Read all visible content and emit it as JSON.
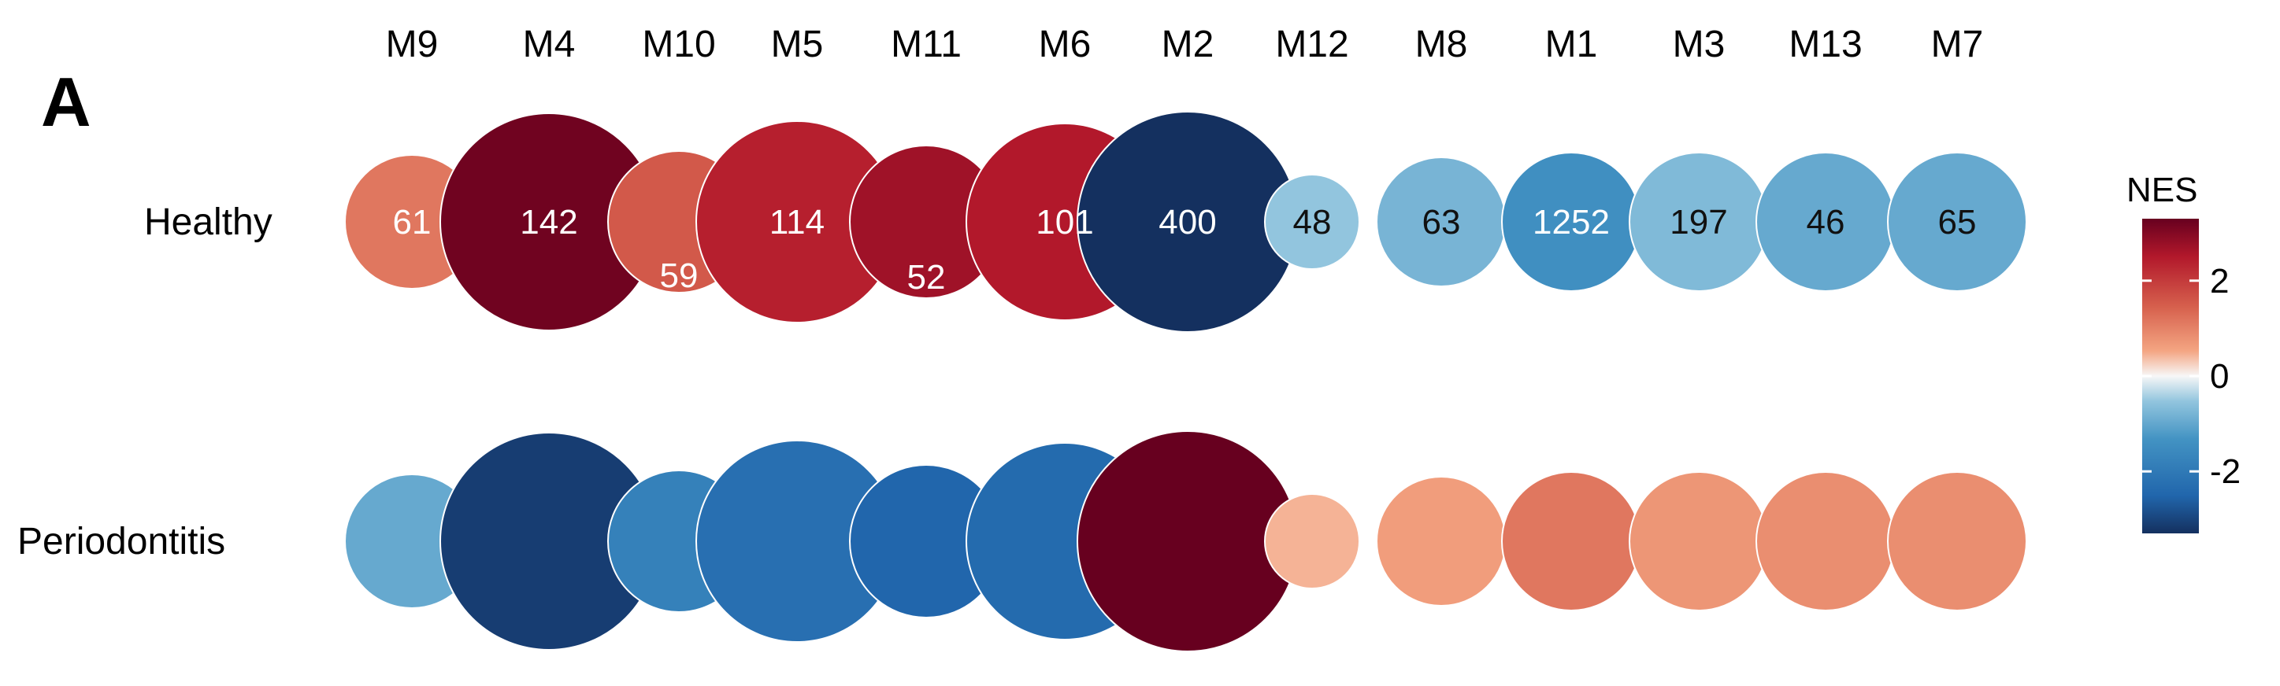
{
  "panel_label": "A",
  "chart_data": {
    "type": "bubble",
    "modules": [
      "M9",
      "M4",
      "M10",
      "M5",
      "M11",
      "M6",
      "M2",
      "M12",
      "M8",
      "M1",
      "M3",
      "M13",
      "M7"
    ],
    "rows": [
      "Healthy",
      "Periodontitis"
    ],
    "sizes": [
      61,
      142,
      59,
      114,
      52,
      101,
      400,
      48,
      63,
      1252,
      197,
      46,
      65
    ],
    "nes": {
      "Healthy": [
        1.2,
        3.2,
        1.6,
        2.4,
        2.7,
        2.5,
        -3.3,
        -0.6,
        -0.9,
        -1.6,
        -0.8,
        -1.1,
        -1.1
      ],
      "Periodontitis": [
        -1.1,
        -3.1,
        -1.9,
        -2.3,
        -2.5,
        -2.4,
        3.3,
        0.5,
        0.7,
        1.2,
        0.8,
        0.9,
        0.9
      ]
    },
    "color_scale": {
      "title": "NES",
      "min": -3.3,
      "max": 3.3,
      "ticks": [
        2,
        0,
        -2
      ],
      "tick_labels": [
        "2",
        "0",
        "-2"
      ]
    }
  }
}
